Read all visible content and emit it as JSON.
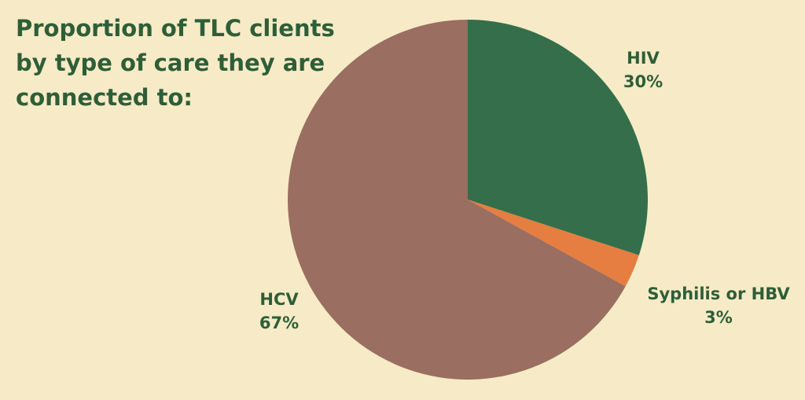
{
  "chart_data": {
    "type": "pie",
    "title": "Proportion of TLC clients by type of care they are connected to:",
    "categories": [
      "HIV",
      "Syphilis or HBV",
      "HCV"
    ],
    "values": [
      30,
      3,
      67
    ],
    "value_labels": [
      "30%",
      "3%",
      "67%"
    ],
    "colors": [
      "#356e4b",
      "#e57e40",
      "#9a6e60"
    ]
  }
}
